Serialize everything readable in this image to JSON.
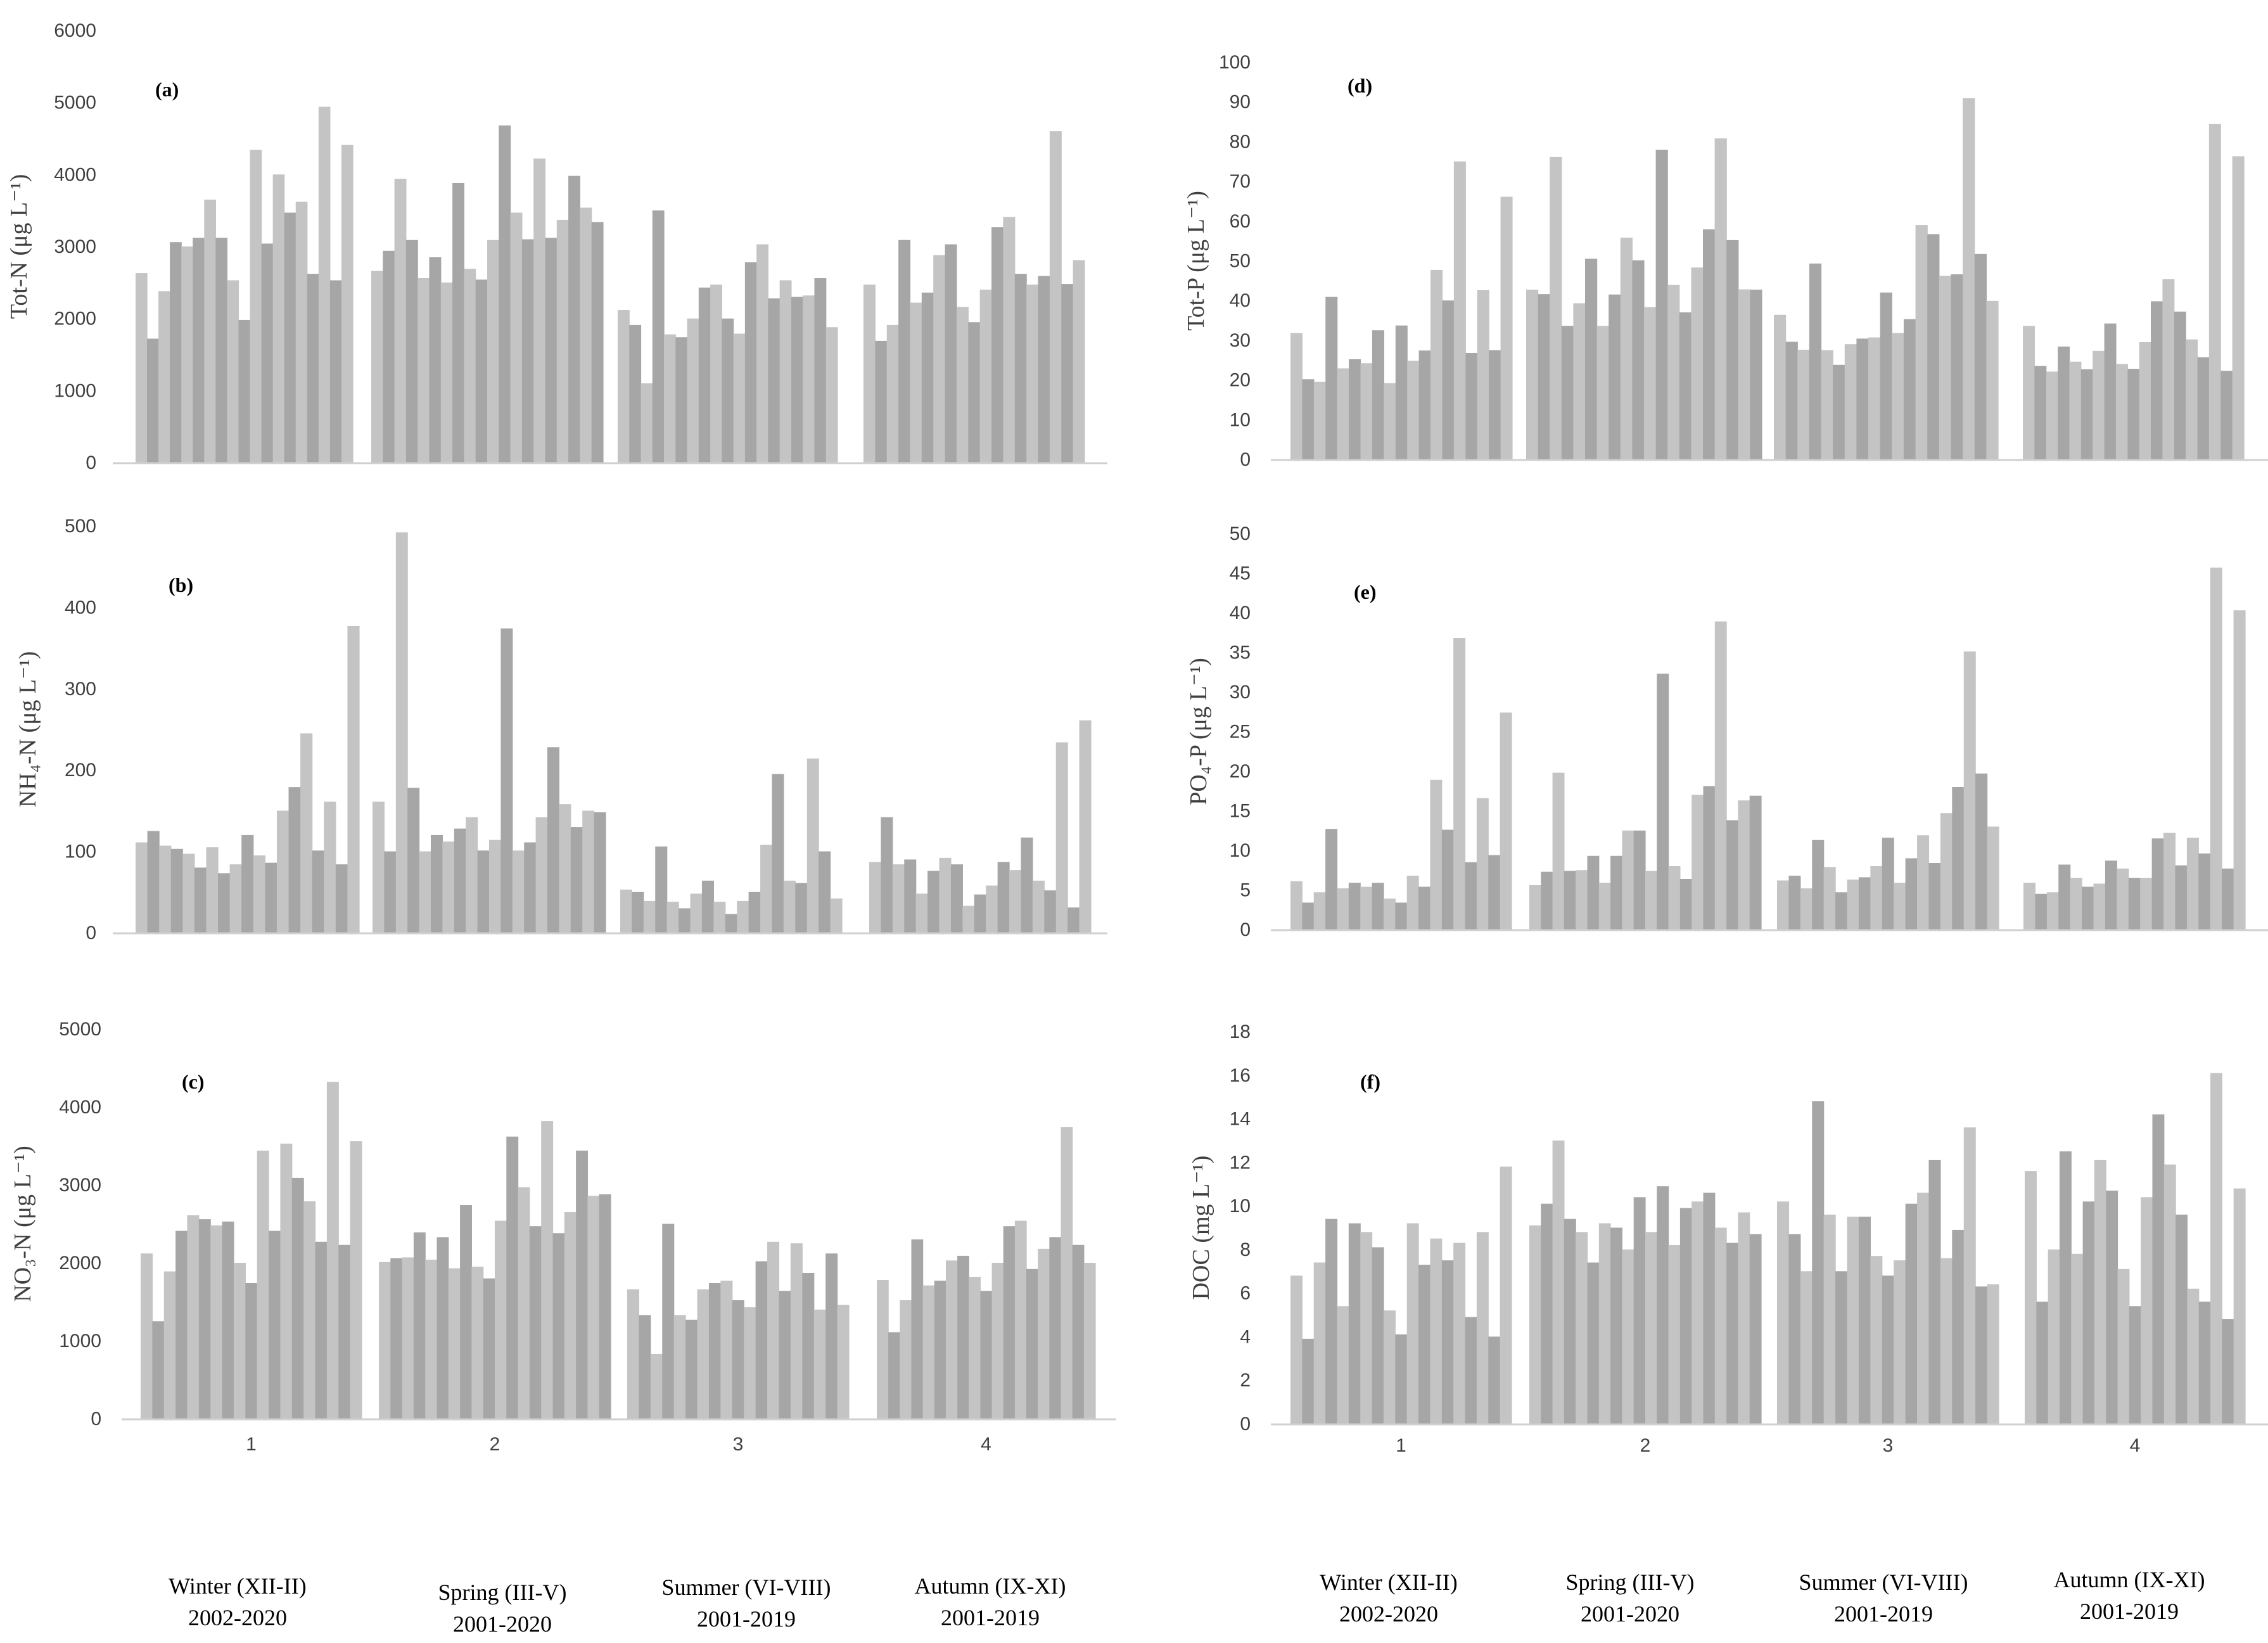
{
  "colors": {
    "dark": "#a6a6a6",
    "light": "#c4c4c4",
    "axis": "#d0d0d0",
    "text": "#404040"
  },
  "seasons": [
    {
      "name": "Winter (XII-II)",
      "years": "2002-2020"
    },
    {
      "name": "Spring (III-V)",
      "years": "2001-2020"
    },
    {
      "name": "Summer (VI-VIII)",
      "years": "2001-2019"
    },
    {
      "name": "Autumn (IX-XI)",
      "years": "2001-2019"
    }
  ],
  "chart_data": [
    {
      "id": "a",
      "label": "(a)",
      "type": "bar",
      "ylabel": "Tot-N (μg L⁻¹)",
      "ylim": [
        0,
        6000
      ],
      "yticks": [
        0,
        1000,
        2000,
        3000,
        4000,
        5000,
        6000
      ],
      "categories": [
        "1",
        "2",
        "3",
        "4"
      ],
      "groups": [
        [
          2630,
          1720,
          2380,
          3060,
          3000,
          3120,
          3650,
          3120,
          2530,
          1980,
          4340,
          3040,
          4000,
          3470,
          3620,
          2620,
          4940,
          2530,
          4410
        ],
        [
          2660,
          2940,
          3940,
          3090,
          2560,
          2850,
          2500,
          3880,
          2690,
          2540,
          3090,
          4680,
          3470,
          3100,
          4220,
          3120,
          3370,
          3980,
          3540,
          3340
        ],
        [
          2120,
          1910,
          1100,
          3500,
          1780,
          1740,
          2000,
          2430,
          2470,
          2000,
          1790,
          2780,
          3030,
          2280,
          2530,
          2300,
          2320,
          2560,
          1880
        ],
        [
          2470,
          1690,
          1910,
          3090,
          2220,
          2360,
          2880,
          3030,
          2160,
          1950,
          2400,
          3270,
          3410,
          2620,
          2470,
          2590,
          4600,
          2480,
          2810
        ]
      ]
    },
    {
      "id": "b",
      "label": "(b)",
      "type": "bar",
      "ylabel": "NH₄-N (μg L⁻¹)",
      "ylim": [
        0,
        500
      ],
      "yticks": [
        0,
        100,
        200,
        300,
        400,
        500
      ],
      "categories": [
        "1",
        "2",
        "3",
        "4"
      ],
      "groups": [
        [
          111,
          125,
          107,
          103,
          97,
          80,
          105,
          73,
          84,
          120,
          95,
          86,
          150,
          179,
          245,
          101,
          161,
          84,
          377
        ],
        [
          161,
          100,
          492,
          178,
          100,
          120,
          112,
          128,
          142,
          101,
          114,
          374,
          101,
          111,
          142,
          228,
          158,
          130,
          150,
          148
        ],
        [
          53,
          50,
          39,
          106,
          38,
          30,
          48,
          64,
          38,
          23,
          39,
          50,
          108,
          195,
          64,
          61,
          214,
          100,
          42
        ],
        [
          87,
          142,
          84,
          90,
          48,
          76,
          92,
          84,
          33,
          47,
          58,
          87,
          77,
          117,
          64,
          52,
          234,
          31,
          261
        ]
      ]
    },
    {
      "id": "c",
      "label": "(c)",
      "type": "bar",
      "ylabel": "NO₃-N (μg L⁻¹)",
      "ylim": [
        0,
        5000
      ],
      "yticks": [
        0,
        1000,
        2000,
        3000,
        4000,
        5000
      ],
      "categories": [
        "1",
        "2",
        "3",
        "4"
      ],
      "groups": [
        [
          2120,
          1250,
          1890,
          2410,
          2610,
          2560,
          2480,
          2530,
          2000,
          1740,
          3440,
          2410,
          3530,
          3090,
          2790,
          2270,
          4320,
          2230,
          3560
        ],
        [
          2010,
          2060,
          2070,
          2390,
          2040,
          2330,
          1930,
          2740,
          1950,
          1800,
          2540,
          3620,
          2970,
          2470,
          3820,
          2380,
          2650,
          3440,
          2860,
          2880
        ],
        [
          1660,
          1330,
          830,
          2500,
          1330,
          1270,
          1660,
          1740,
          1770,
          1520,
          1430,
          2020,
          2270,
          1640,
          2250,
          1870,
          1400,
          2120,
          1460
        ],
        [
          1780,
          1110,
          1520,
          2300,
          1710,
          1770,
          2030,
          2090,
          1820,
          1640,
          2000,
          2470,
          2540,
          1920,
          2180,
          2330,
          3740,
          2230,
          2000
        ]
      ]
    },
    {
      "id": "d",
      "label": "(d)",
      "type": "bar",
      "ylabel": "Tot-P (μg L⁻¹)",
      "ylim": [
        0,
        100
      ],
      "yticks": [
        0,
        10,
        20,
        30,
        40,
        50,
        60,
        70,
        80,
        90,
        100
      ],
      "categories": [
        "1",
        "2",
        "3",
        "4"
      ],
      "groups": [
        [
          31.8,
          20.2,
          19.5,
          40.9,
          22.9,
          25.2,
          24.2,
          32.5,
          19.2,
          33.7,
          24.8,
          27.4,
          47.7,
          40.0,
          75.0,
          26.8,
          42.6,
          27.5,
          66.1
        ],
        [
          42.7,
          41.6,
          76.1,
          33.6,
          39.3,
          50.5,
          33.6,
          41.5,
          55.8,
          50.1,
          38.3,
          77.9,
          43.9,
          37.0,
          48.3,
          57.9,
          80.8,
          55.2,
          42.8,
          42.7
        ],
        [
          36.4,
          29.6,
          27.6,
          49.3,
          27.5,
          23.8,
          29.0,
          30.4,
          30.7,
          42.0,
          31.8,
          35.3,
          59.0,
          56.7,
          46.2,
          46.6,
          90.9,
          51.7,
          39.9
        ],
        [
          33.6,
          23.5,
          22.1,
          28.4,
          24.6,
          22.7,
          27.3,
          34.2,
          24.0,
          22.8,
          29.5,
          39.8,
          45.4,
          37.2,
          30.2,
          25.7,
          84.4,
          22.3,
          76.3
        ]
      ]
    },
    {
      "id": "e",
      "label": "(e)",
      "type": "bar",
      "ylabel": "PO₄-P (μg L⁻¹)",
      "ylim": [
        0,
        50
      ],
      "yticks": [
        0,
        5,
        10,
        15,
        20,
        25,
        30,
        35,
        40,
        45,
        50
      ],
      "categories": [
        "1",
        "2",
        "3",
        "4"
      ],
      "groups": [
        [
          6.1,
          3.4,
          4.7,
          12.7,
          5.2,
          5.9,
          5.4,
          5.9,
          3.9,
          3.4,
          6.8,
          5.4,
          18.9,
          12.6,
          36.8,
          8.5,
          16.6,
          9.4,
          27.4
        ],
        [
          5.6,
          7.3,
          19.8,
          7.4,
          7.5,
          9.3,
          5.9,
          9.3,
          12.5,
          12.5,
          7.4,
          32.3,
          8.0,
          6.4,
          17.0,
          18.1,
          38.9,
          13.8,
          16.3,
          16.9
        ],
        [
          6.2,
          6.8,
          5.2,
          11.3,
          7.9,
          4.7,
          6.3,
          6.6,
          8.0,
          11.6,
          5.9,
          9.0,
          11.9,
          8.4,
          14.7,
          18.0,
          35.1,
          19.7,
          13.0
        ],
        [
          5.9,
          4.5,
          4.7,
          8.2,
          6.5,
          5.4,
          5.8,
          8.7,
          7.7,
          6.5,
          6.5,
          11.5,
          12.2,
          8.1,
          11.6,
          9.6,
          45.7,
          7.7,
          40.3
        ]
      ]
    },
    {
      "id": "f",
      "label": "(f)",
      "type": "bar",
      "ylabel": "DOC (mg L⁻¹)",
      "ylim": [
        0,
        18
      ],
      "yticks": [
        0,
        2,
        4,
        6,
        8,
        10,
        12,
        14,
        16,
        18
      ],
      "categories": [
        "1",
        "2",
        "3",
        "4"
      ],
      "groups": [
        [
          6.8,
          3.9,
          7.4,
          9.4,
          5.4,
          9.2,
          8.8,
          8.1,
          5.2,
          4.1,
          9.2,
          7.3,
          8.5,
          7.5,
          8.3,
          4.9,
          8.8,
          4.0,
          11.8
        ],
        [
          9.1,
          10.1,
          13.0,
          9.4,
          8.8,
          7.4,
          9.2,
          9.0,
          8.0,
          10.4,
          8.8,
          10.9,
          8.2,
          9.9,
          10.2,
          10.6,
          9.0,
          8.3,
          9.7,
          8.7
        ],
        [
          10.2,
          8.7,
          7.0,
          14.8,
          9.6,
          7.0,
          9.5,
          9.5,
          7.7,
          6.8,
          7.5,
          10.1,
          10.6,
          12.1,
          7.6,
          8.9,
          13.6,
          6.3,
          6.4
        ],
        [
          11.6,
          5.6,
          8.0,
          12.5,
          7.8,
          10.2,
          12.1,
          10.7,
          7.1,
          5.4,
          10.4,
          14.2,
          11.9,
          9.6,
          6.2,
          5.6,
          16.1,
          4.8,
          10.8
        ]
      ]
    }
  ]
}
